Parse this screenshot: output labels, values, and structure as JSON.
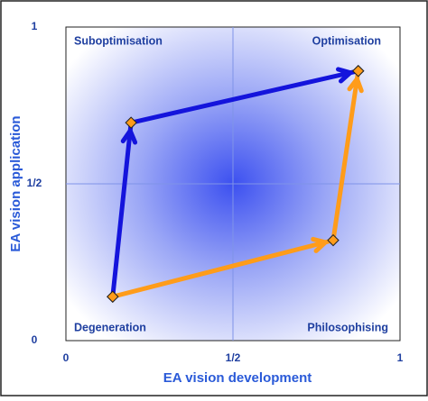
{
  "chart_data": {
    "type": "path-scatter",
    "xlabel": "EA vision development",
    "ylabel": "EA vision application",
    "xlim": [
      0,
      1
    ],
    "ylim": [
      0,
      1
    ],
    "xticks": [
      0,
      {
        "value": 0.5,
        "label": "1/2"
      },
      1
    ],
    "yticks": [
      0,
      {
        "value": 0.5,
        "label": "1/2"
      },
      1
    ],
    "grid": true,
    "annotations": [
      "Suboptimisation",
      "Optimisation",
      "Degeneration",
      "Philosophising"
    ],
    "series": [
      {
        "color": "#1414dc",
        "x": [
          0.14,
          0.195,
          0.875
        ],
        "y": [
          0.14,
          0.695,
          0.86
        ]
      },
      {
        "color": "#ff9c1a",
        "x": [
          0.14,
          0.8,
          0.875
        ],
        "y": [
          0.14,
          0.32,
          0.86
        ]
      }
    ],
    "marker_color": "#ff9c1a"
  }
}
